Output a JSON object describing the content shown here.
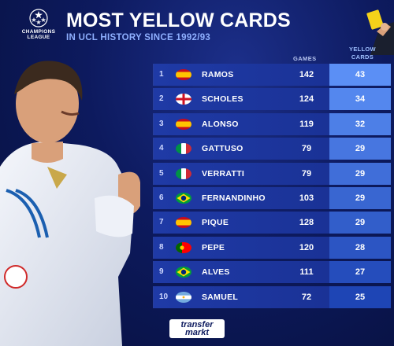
{
  "brand": {
    "logo_text": "CHAMPIONS LEAGUE",
    "footer_logo_line1": "transfer",
    "footer_logo_line2": "markt"
  },
  "header": {
    "title": "MOST YELLOW CARDS",
    "subtitle": "IN UCL HISTORY SINCE 1992/93"
  },
  "columns": {
    "games": "GAMES",
    "yellow_cards_line1": "YELLOW",
    "yellow_cards_line2": "CARDS"
  },
  "colors": {
    "title": "#ffffff",
    "subtitle": "#8fb0ff",
    "row_bg": "#1f3aa6",
    "card_col_top": "#5b8ff5",
    "card_col_bottom": "#1e45b5",
    "yellow": "#f5d21a"
  },
  "rows": [
    {
      "rank": "1",
      "flag": "spain",
      "name": "RAMOS",
      "games": "142",
      "cards": "43"
    },
    {
      "rank": "2",
      "flag": "england",
      "name": "SCHOLES",
      "games": "124",
      "cards": "34"
    },
    {
      "rank": "3",
      "flag": "spain",
      "name": "ALONSO",
      "games": "119",
      "cards": "32"
    },
    {
      "rank": "4",
      "flag": "italy",
      "name": "GATTUSO",
      "games": "79",
      "cards": "29"
    },
    {
      "rank": "5",
      "flag": "italy",
      "name": "VERRATTI",
      "games": "79",
      "cards": "29"
    },
    {
      "rank": "6",
      "flag": "brazil",
      "name": "FERNANDINHO",
      "games": "103",
      "cards": "29"
    },
    {
      "rank": "7",
      "flag": "spain",
      "name": "PIQUE",
      "games": "128",
      "cards": "29"
    },
    {
      "rank": "8",
      "flag": "portugal",
      "name": "PEPE",
      "games": "120",
      "cards": "28"
    },
    {
      "rank": "9",
      "flag": "brazil",
      "name": "ALVES",
      "games": "111",
      "cards": "27"
    },
    {
      "rank": "10",
      "flag": "argentina",
      "name": "SAMUEL",
      "games": "72",
      "cards": "25"
    }
  ]
}
